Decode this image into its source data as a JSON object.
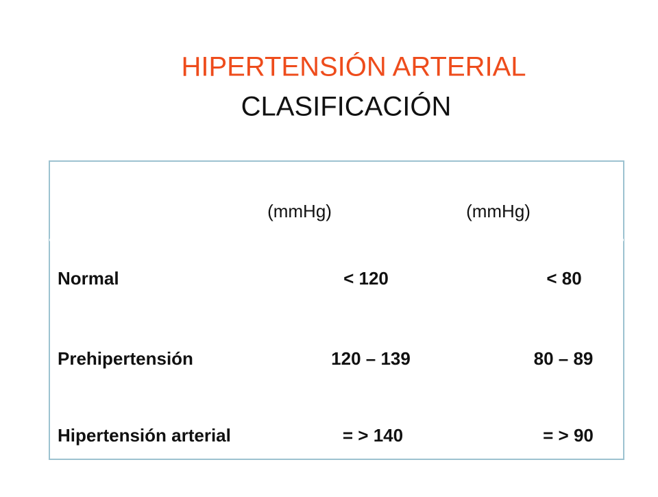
{
  "header": {
    "title": "HIPERTENSIÓN ARTERIAL",
    "subtitle": "CLASIFICACIÓN"
  },
  "table": {
    "header": [
      "(mmHg)",
      "(mmHg)"
    ],
    "rows": [
      [
        "Normal",
        "< 120",
        "< 80"
      ],
      [
        "Prehipertensión",
        "120 – 139",
        "80 – 89"
      ],
      [
        "Hipertensión arterial",
        "= > 140",
        "= > 90"
      ]
    ]
  }
}
